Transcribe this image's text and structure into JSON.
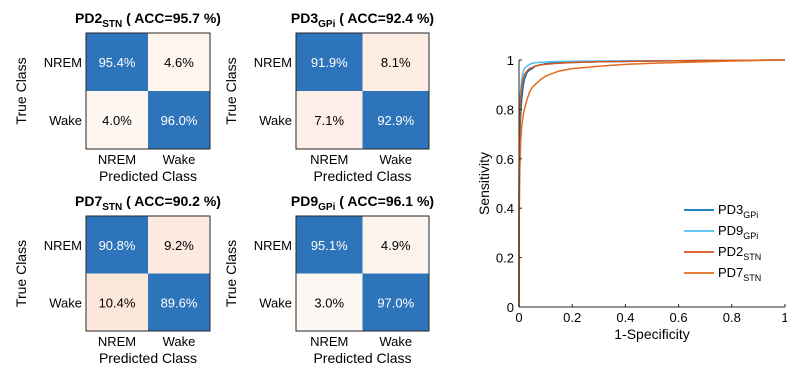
{
  "chart_data": [
    {
      "type": "heatmap",
      "title_main": "PD2",
      "title_sub": "STN",
      "title_acc": " ( ACC=95.7 %)",
      "ylabel": "True Class",
      "xlabel": "Predicted Class",
      "row_labels": [
        "NREM",
        "Wake"
      ],
      "col_labels": [
        "NREM",
        "Wake"
      ],
      "values": [
        [
          95.4,
          4.6
        ],
        [
          4.0,
          96.0
        ]
      ],
      "cell_text": [
        [
          "95.4%",
          "4.6%"
        ],
        [
          "4.0%",
          "96.0%"
        ]
      ]
    },
    {
      "type": "heatmap",
      "title_main": "PD3",
      "title_sub": "GPi",
      "title_acc": " ( ACC=92.4 %)",
      "ylabel": "True Class",
      "xlabel": "Predicted Class",
      "row_labels": [
        "NREM",
        "Wake"
      ],
      "col_labels": [
        "NREM",
        "Wake"
      ],
      "values": [
        [
          91.9,
          8.1
        ],
        [
          7.1,
          92.9
        ]
      ],
      "cell_text": [
        [
          "91.9%",
          "8.1%"
        ],
        [
          "7.1%",
          "92.9%"
        ]
      ]
    },
    {
      "type": "heatmap",
      "title_main": "PD7",
      "title_sub": "STN",
      "title_acc": " ( ACC=90.2 %)",
      "ylabel": "True Class",
      "xlabel": "Predicted Class",
      "row_labels": [
        "NREM",
        "Wake"
      ],
      "col_labels": [
        "NREM",
        "Wake"
      ],
      "values": [
        [
          90.8,
          9.2
        ],
        [
          10.4,
          89.6
        ]
      ],
      "cell_text": [
        [
          "90.8%",
          "9.2%"
        ],
        [
          "10.4%",
          "89.6%"
        ]
      ]
    },
    {
      "type": "heatmap",
      "title_main": "PD9",
      "title_sub": "GPi",
      "title_acc": " ( ACC=96.1 %)",
      "ylabel": "True Class",
      "xlabel": "Predicted Class",
      "row_labels": [
        "NREM",
        "Wake"
      ],
      "col_labels": [
        "NREM",
        "Wake"
      ],
      "values": [
        [
          95.1,
          4.9
        ],
        [
          3.0,
          97.0
        ]
      ],
      "cell_text": [
        [
          "95.1%",
          "4.9%"
        ],
        [
          "3.0%",
          "97.0%"
        ]
      ]
    },
    {
      "type": "line",
      "title": "",
      "xlabel": "1-Specificity",
      "ylabel": "Sensitivity",
      "xlim": [
        0,
        1
      ],
      "ylim": [
        0,
        1
      ],
      "xticks": [
        "0",
        "0.2",
        "0.4",
        "0.6",
        "0.8",
        "1"
      ],
      "yticks": [
        "0",
        "0.2",
        "0.4",
        "0.6",
        "0.8",
        "1"
      ],
      "grid": false,
      "legend_position": "bottom-right",
      "series": [
        {
          "name_main": "PD3",
          "name_sub": "GPi",
          "color": "#0072bd",
          "x": [
            0,
            0,
            0.002,
            0.005,
            0.01,
            0.015,
            0.02,
            0.03,
            0.04,
            0.05,
            0.06,
            0.08,
            0.1,
            0.15,
            0.2,
            0.3,
            0.5,
            0.7,
            0.9,
            1
          ],
          "y": [
            0,
            0.35,
            0.6,
            0.75,
            0.84,
            0.89,
            0.92,
            0.95,
            0.96,
            0.965,
            0.975,
            0.98,
            0.985,
            0.99,
            0.99,
            0.993,
            0.996,
            0.998,
            0.999,
            1
          ]
        },
        {
          "name_main": "PD9",
          "name_sub": "GPi",
          "color": "#4dbeee",
          "x": [
            0,
            0,
            0.002,
            0.005,
            0.01,
            0.015,
            0.02,
            0.03,
            0.04,
            0.05,
            0.07,
            0.1,
            0.15,
            0.2,
            0.3,
            0.5,
            0.7,
            0.9,
            1
          ],
          "y": [
            0,
            0.5,
            0.75,
            0.86,
            0.92,
            0.95,
            0.965,
            0.975,
            0.982,
            0.987,
            0.99,
            0.992,
            0.994,
            0.995,
            0.996,
            0.997,
            0.998,
            0.999,
            1
          ]
        },
        {
          "name_main": "PD2",
          "name_sub": "STN",
          "color": "#d95319",
          "x": [
            0,
            0,
            0.002,
            0.005,
            0.01,
            0.015,
            0.02,
            0.03,
            0.04,
            0.05,
            0.06,
            0.08,
            0.1,
            0.15,
            0.2,
            0.3,
            0.5,
            0.7,
            0.9,
            1
          ],
          "y": [
            0,
            0.45,
            0.7,
            0.82,
            0.89,
            0.92,
            0.94,
            0.955,
            0.965,
            0.97,
            0.975,
            0.98,
            0.983,
            0.987,
            0.99,
            0.993,
            0.996,
            0.998,
            0.999,
            1
          ]
        },
        {
          "name_main": "PD7",
          "name_sub": "STN",
          "color": "#e36c1e",
          "x": [
            0,
            0,
            0.003,
            0.006,
            0.01,
            0.015,
            0.02,
            0.03,
            0.04,
            0.05,
            0.06,
            0.08,
            0.1,
            0.15,
            0.2,
            0.3,
            0.4,
            0.5,
            0.6,
            0.7,
            0.8,
            0.9,
            1
          ],
          "y": [
            0,
            0.3,
            0.55,
            0.66,
            0.73,
            0.77,
            0.8,
            0.84,
            0.87,
            0.89,
            0.9,
            0.92,
            0.935,
            0.955,
            0.965,
            0.975,
            0.982,
            0.987,
            0.99,
            0.993,
            0.996,
            0.998,
            1
          ]
        }
      ]
    }
  ]
}
